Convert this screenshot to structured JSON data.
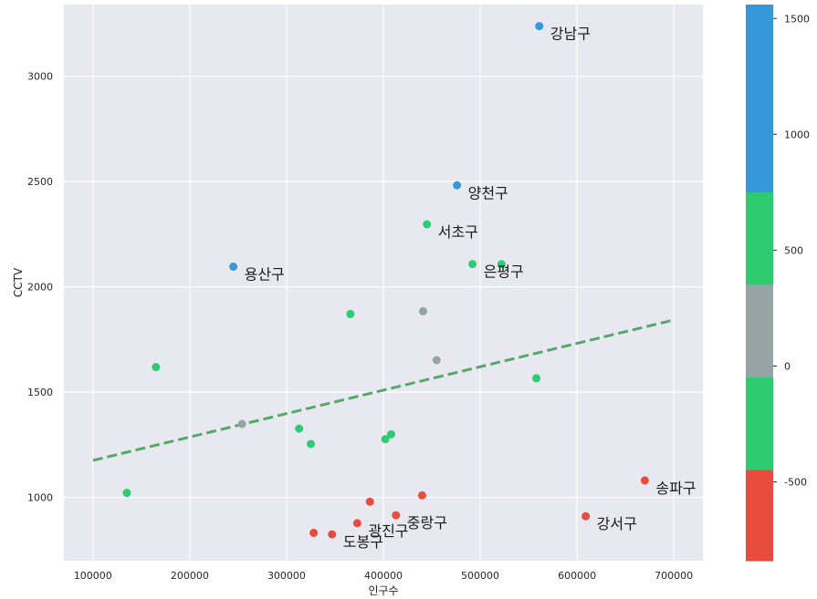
{
  "chart_data": {
    "type": "scatter",
    "xlabel": "인구수",
    "ylabel": "CCTV",
    "xlim": [
      70000,
      730000
    ],
    "ylim": [
      700,
      3340
    ],
    "xticks": [
      100000,
      200000,
      300000,
      400000,
      500000,
      600000,
      700000
    ],
    "yticks": [
      1000,
      1500,
      2000,
      2500,
      3000
    ],
    "grid": true,
    "background": "#e8e8f1",
    "colors": {
      "red": "#e74c3c",
      "green": "#2ecc71",
      "gray": "#95a5a6",
      "blue": "#3498db",
      "fit_line": "#55a868"
    },
    "points": [
      {
        "x": 561000,
        "y": 3238,
        "color": "blue",
        "label": "강남구"
      },
      {
        "x": 476000,
        "y": 2482,
        "color": "blue",
        "label": "양천구"
      },
      {
        "x": 245000,
        "y": 2096,
        "color": "blue",
        "label": "용산구"
      },
      {
        "x": 445000,
        "y": 2297,
        "color": "green",
        "label": "서초구"
      },
      {
        "x": 492000,
        "y": 2108,
        "color": "green",
        "label": "은평구"
      },
      {
        "x": 522000,
        "y": 2108,
        "color": "green",
        "label": ""
      },
      {
        "x": 366000,
        "y": 1871,
        "color": "green",
        "label": ""
      },
      {
        "x": 165000,
        "y": 1619,
        "color": "green",
        "label": ""
      },
      {
        "x": 558000,
        "y": 1566,
        "color": "green",
        "label": ""
      },
      {
        "x": 313000,
        "y": 1327,
        "color": "green",
        "label": ""
      },
      {
        "x": 325000,
        "y": 1254,
        "color": "green",
        "label": ""
      },
      {
        "x": 408000,
        "y": 1300,
        "color": "green",
        "label": ""
      },
      {
        "x": 402000,
        "y": 1277,
        "color": "green",
        "label": ""
      },
      {
        "x": 135000,
        "y": 1022,
        "color": "green",
        "label": ""
      },
      {
        "x": 441000,
        "y": 1884,
        "color": "gray",
        "label": ""
      },
      {
        "x": 455000,
        "y": 1652,
        "color": "gray",
        "label": ""
      },
      {
        "x": 254000,
        "y": 1349,
        "color": "gray",
        "label": ""
      },
      {
        "x": 670000,
        "y": 1081,
        "color": "red",
        "label": "송파구"
      },
      {
        "x": 609000,
        "y": 911,
        "color": "red",
        "label": "강서구"
      },
      {
        "x": 413000,
        "y": 916,
        "color": "red",
        "label": "중랑구"
      },
      {
        "x": 373000,
        "y": 878,
        "color": "red",
        "label": "광진구"
      },
      {
        "x": 347000,
        "y": 825,
        "color": "red",
        "label": "도봉구"
      },
      {
        "x": 440000,
        "y": 1010,
        "color": "red",
        "label": ""
      },
      {
        "x": 386000,
        "y": 980,
        "color": "red",
        "label": ""
      },
      {
        "x": 328000,
        "y": 832,
        "color": "red",
        "label": ""
      }
    ],
    "fit_line": {
      "x": [
        100000,
        700000
      ],
      "y": [
        1176,
        1843
      ],
      "style": "dashed"
    },
    "colorbar": {
      "range": [
        -840,
        1560
      ],
      "ticks": [
        -500,
        0,
        500,
        1000,
        1500
      ],
      "bands": [
        {
          "from": -840,
          "to": -447,
          "color": "#e74c3c"
        },
        {
          "from": -447,
          "to": -47,
          "color": "#2ecc71"
        },
        {
          "from": -47,
          "to": 353,
          "color": "#95a5a6"
        },
        {
          "from": 353,
          "to": 753,
          "color": "#2ecc71"
        },
        {
          "from": 753,
          "to": 1560,
          "color": "#3498db"
        }
      ]
    }
  }
}
